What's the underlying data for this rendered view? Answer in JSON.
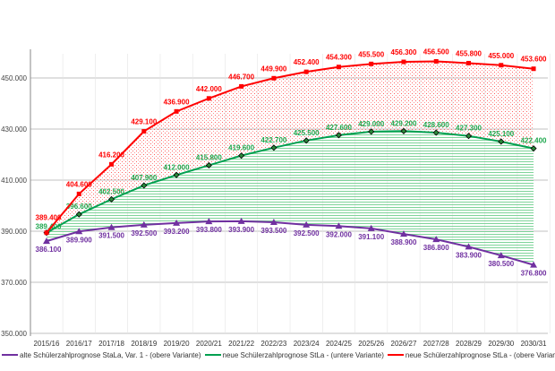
{
  "chart_data": {
    "type": "line",
    "title": "",
    "xlabel": "",
    "ylabel": "",
    "ylim": [
      350,
      460
    ],
    "yticks": [
      "350.000",
      "370.000",
      "390.000",
      "410.000",
      "430.000",
      "450.000"
    ],
    "ytick_values": [
      350,
      370,
      390,
      410,
      430,
      450
    ],
    "categories": [
      "2015/16",
      "2016/17",
      "2017/18",
      "2018/19",
      "2019/20",
      "2020/21",
      "2021/22",
      "2022/23",
      "2023/24",
      "2024/25",
      "2025/26",
      "2026/27",
      "2027/28",
      "2028/29",
      "2029/30",
      "2030/31"
    ],
    "legend_position": "bottom",
    "grid": true,
    "series": [
      {
        "name": "alte Schülerzahlprognose StaLa, Var. 1 - (obere Variante)",
        "color": "#7030a0",
        "marker": "triangle",
        "values": [
          386.1,
          389.9,
          391.5,
          392.5,
          393.2,
          393.8,
          393.9,
          393.5,
          392.5,
          392.0,
          391.1,
          388.9,
          386.8,
          383.9,
          380.5,
          376.8
        ],
        "labels": [
          "386.100",
          "389.900",
          "391.500",
          "392.500",
          "393.200",
          "393.800",
          "393.900",
          "393.500",
          "392.500",
          "392.000",
          "391.100",
          "388.900",
          "386.800",
          "383.900",
          "380.500",
          "376.800"
        ]
      },
      {
        "name": "neue Schülerzahlprognose StLa - (untere Variante)",
        "color": "#00a050",
        "marker": "diamond",
        "values": [
          389.4,
          396.6,
          402.5,
          407.9,
          412.0,
          415.8,
          419.6,
          422.7,
          425.5,
          427.6,
          429.0,
          429.2,
          428.6,
          427.3,
          425.1,
          422.4
        ],
        "labels": [
          "389.400",
          "396.600",
          "402.500",
          "407.900",
          "412.000",
          "415.800",
          "419.600",
          "422.700",
          "425.500",
          "427.600",
          "429.000",
          "429.200",
          "428.600",
          "427.300",
          "425.100",
          "422.400"
        ]
      },
      {
        "name": "neue Schülerzahlprognose StLa - (obere Variante)",
        "color": "#ff0000",
        "marker": "square",
        "values": [
          389.4,
          404.6,
          416.2,
          429.1,
          436.9,
          442.0,
          446.7,
          449.9,
          452.4,
          454.3,
          455.5,
          456.3,
          456.5,
          455.8,
          455.0,
          453.6
        ],
        "labels": [
          "389.400",
          "404.600",
          "416.200",
          "429.100",
          "436.900",
          "442.000",
          "446.700",
          "449.900",
          "452.400",
          "454.300",
          "455.500",
          "456.300",
          "456.500",
          "455.800",
          "455.000",
          "453.600"
        ]
      }
    ]
  }
}
